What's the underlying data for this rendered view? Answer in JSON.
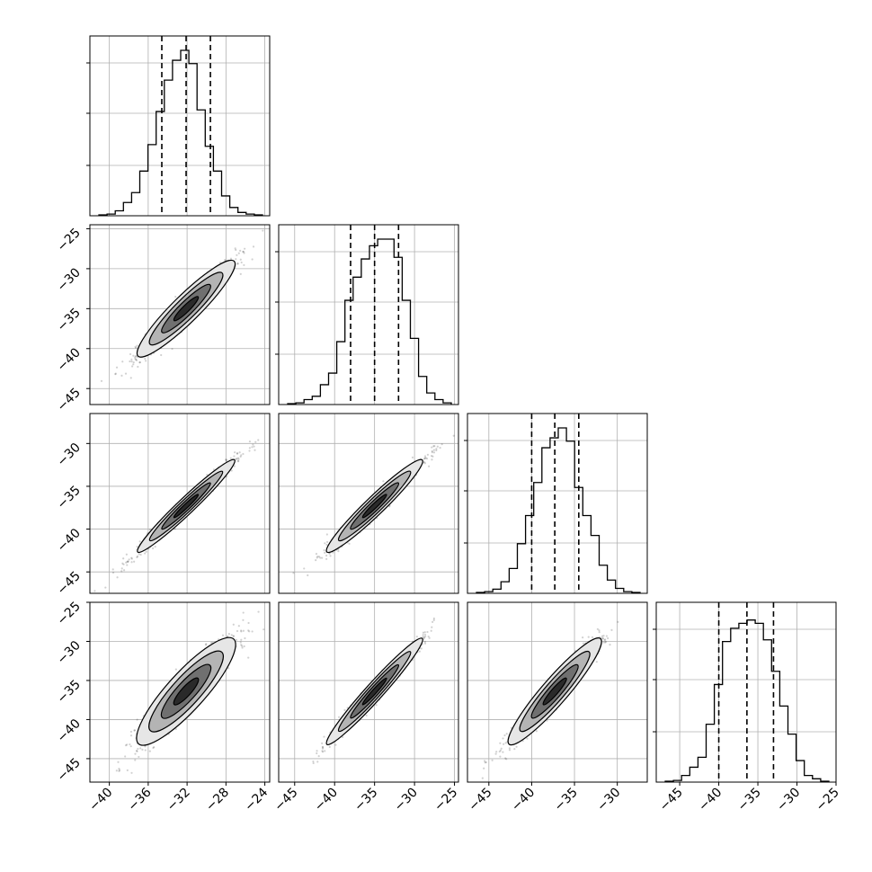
{
  "figure": {
    "type": "corner-plot",
    "n_params": 4
  },
  "chart_data": {
    "type": "corner",
    "grid": true,
    "histogram_style": "step",
    "quantile_lines": "dashed",
    "ticks": {
      "x": [
        [
          "−40",
          "−36",
          "−32",
          "−28",
          "−24"
        ],
        [
          "−45",
          "−40",
          "−35",
          "−30",
          "−25"
        ],
        [
          "−45",
          "−40",
          "−35",
          "−30"
        ],
        [
          "−45",
          "−40",
          "−35",
          "−30",
          "−25"
        ]
      ],
      "y": [
        [],
        [
          "−25",
          "−30",
          "−35",
          "−40",
          "−45"
        ],
        [
          "−30",
          "−35",
          "−40",
          "−45"
        ],
        [
          "−25",
          "−30",
          "−35",
          "−40",
          "−45"
        ]
      ]
    },
    "params": [
      {
        "range": [
          -42.0,
          -23.5
        ],
        "ticks": [
          -40,
          -36,
          -32,
          -28,
          -24
        ],
        "quantiles": [
          -34.6,
          -32.1,
          -29.6
        ],
        "hist": [
          0.5,
          1,
          3,
          8,
          14,
          27,
          43,
          63,
          82,
          94,
          100,
          92,
          64,
          42,
          27,
          12,
          5,
          2,
          1,
          0.5
        ]
      },
      {
        "range": [
          -47.0,
          -24.5
        ],
        "ticks": [
          -45,
          -40,
          -35,
          -30,
          -25
        ],
        "quantiles": [
          -38.0,
          -35.0,
          -32.0
        ],
        "hist": [
          0.5,
          1,
          3,
          5,
          12,
          19,
          38,
          63,
          77,
          88,
          96,
          100,
          100,
          89,
          63,
          40,
          17,
          7,
          3,
          1
        ]
      },
      {
        "range": [
          -47.5,
          -26.5
        ],
        "ticks": [
          -45,
          -40,
          -35,
          -30
        ],
        "quantiles": [
          -40.0,
          -37.3,
          -34.5
        ],
        "hist": [
          0.5,
          1,
          2.5,
          7,
          15,
          30,
          47,
          67,
          88,
          94,
          100,
          92,
          64,
          47,
          35,
          17,
          8,
          3,
          1,
          0.5
        ]
      },
      {
        "range": [
          -48.0,
          -25.0
        ],
        "ticks": [
          -45,
          -40,
          -35,
          -30,
          -25
        ],
        "quantiles": [
          -40.0,
          -36.4,
          -33.0
        ],
        "hist": [
          0.5,
          1,
          4,
          9,
          15,
          35,
          59,
          85,
          93,
          96,
          98,
          96,
          86,
          67,
          46,
          29,
          13,
          4,
          2,
          0.5
        ]
      }
    ],
    "pairs": [
      {
        "row": 1,
        "col": 0,
        "x_center": -32.1,
        "y_center": -35.0,
        "x_std": 2.5,
        "y_std": 3.0,
        "corr": 0.96
      },
      {
        "row": 2,
        "col": 0,
        "x_center": -32.1,
        "y_center": -37.3,
        "x_std": 2.5,
        "y_std": 2.7,
        "corr": 0.985
      },
      {
        "row": 2,
        "col": 1,
        "x_center": -35.0,
        "y_center": -37.3,
        "x_std": 3.0,
        "y_std": 2.7,
        "corr": 0.98
      },
      {
        "row": 3,
        "col": 0,
        "x_center": -32.1,
        "y_center": -36.4,
        "x_std": 2.5,
        "y_std": 3.4,
        "corr": 0.93
      },
      {
        "row": 3,
        "col": 1,
        "x_center": -35.0,
        "y_center": -36.4,
        "x_std": 3.0,
        "y_std": 3.4,
        "corr": 0.985
      },
      {
        "row": 3,
        "col": 2,
        "x_center": -37.3,
        "y_center": -36.4,
        "x_std": 2.7,
        "y_std": 3.4,
        "corr": 0.965
      }
    ],
    "colors": {
      "axes": "#000000",
      "grid": "#b0b0b0",
      "points": "#000000",
      "contour_fill": [
        "#e6e6e6",
        "#b4b4b4",
        "#707070",
        "#2a2a2a"
      ]
    }
  }
}
